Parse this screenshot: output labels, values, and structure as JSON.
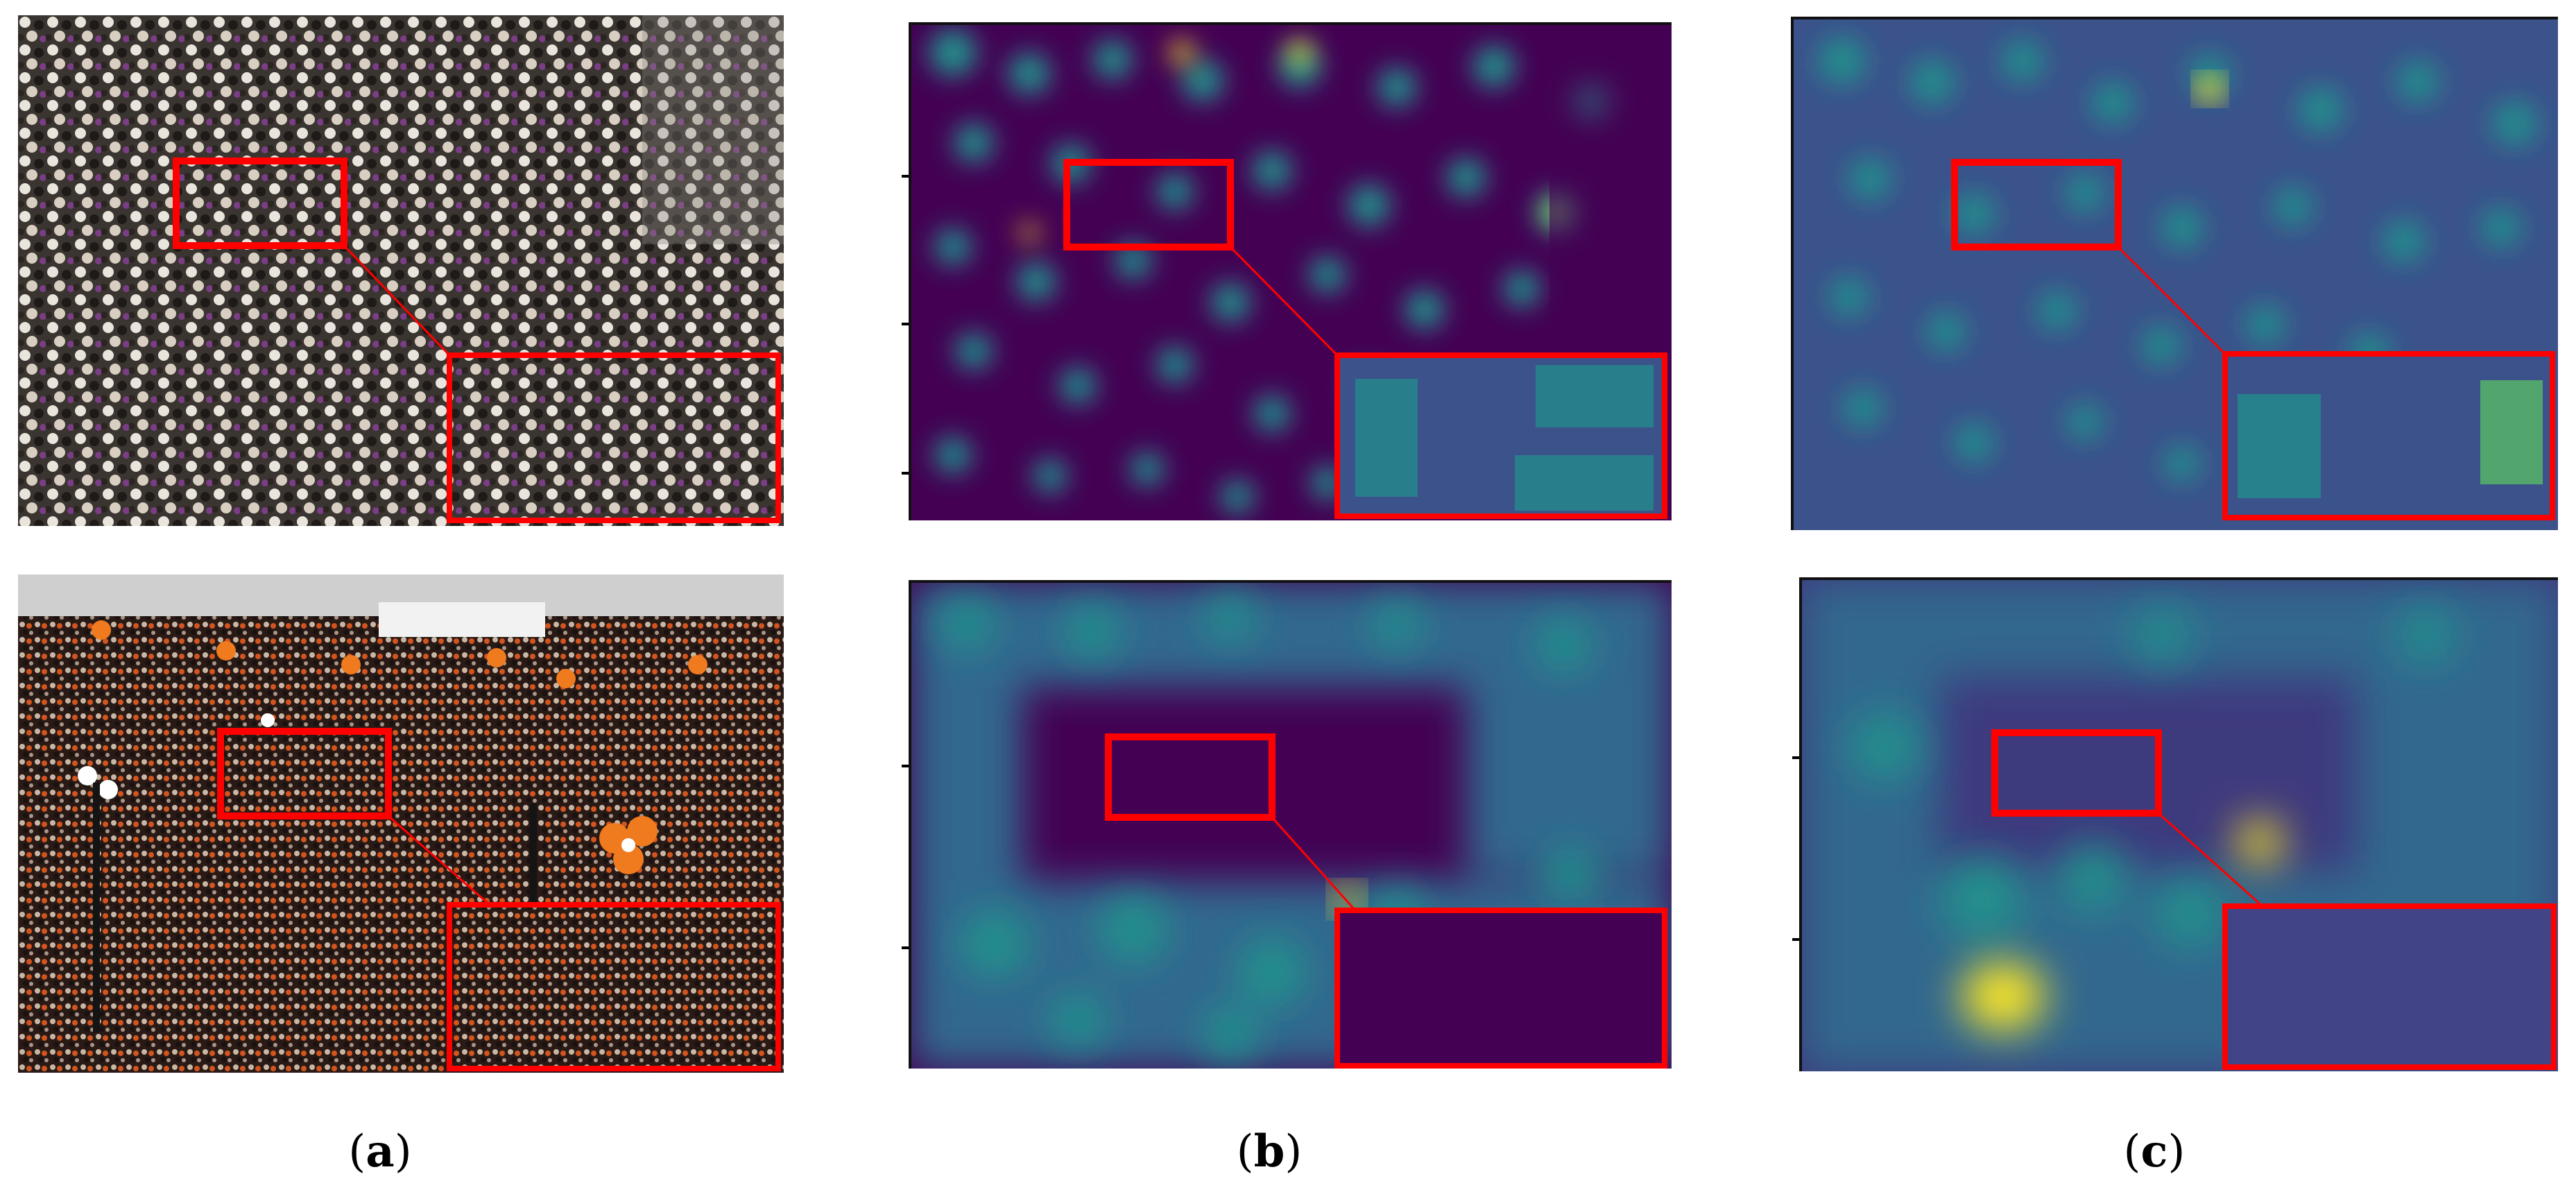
{
  "figure": {
    "captions": [
      {
        "label": "a"
      },
      {
        "label": "b"
      },
      {
        "label": "c"
      }
    ],
    "colors": {
      "highlight_box": "#ff0000",
      "heatmap_low": "#440154",
      "heatmap_mid": "#21918c",
      "heatmap_high": "#fde725"
    }
  }
}
